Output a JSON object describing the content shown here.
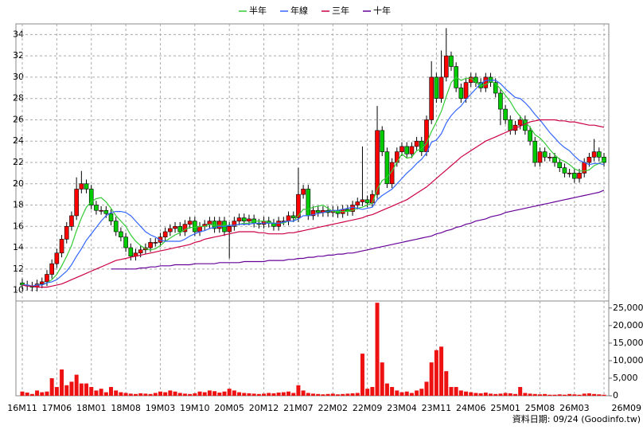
{
  "chart_data": {
    "type": "candlestick",
    "categories": [
      "16M11",
      null,
      null,
      null,
      null,
      null,
      null,
      "17M06",
      null,
      null,
      null,
      null,
      null,
      null,
      "18M01",
      null,
      null,
      null,
      null,
      null,
      null,
      "18M08",
      null,
      null,
      null,
      null,
      null,
      null,
      "19M03",
      null,
      null,
      null,
      null,
      null,
      null,
      "19M10",
      null,
      null,
      null,
      null,
      null,
      null,
      "20M05",
      null,
      null,
      null,
      null,
      null,
      null,
      "20M12",
      null,
      null,
      null,
      null,
      null,
      null,
      "21M07",
      null,
      null,
      null,
      null,
      null,
      null,
      "22M02",
      null,
      null,
      null,
      null,
      null,
      null,
      "22M09",
      null,
      null,
      null,
      null,
      null,
      null,
      "23M04",
      null,
      null,
      null,
      null,
      null,
      null,
      "23M11",
      null,
      null,
      null,
      null,
      null,
      null,
      "24M06",
      null,
      null,
      null,
      null,
      null,
      null,
      "25M01",
      null,
      null,
      null,
      null,
      null,
      null,
      "25M08",
      null,
      null,
      null,
      null,
      null,
      null,
      "26M03",
      null,
      null,
      null,
      null,
      null,
      "26M09"
    ],
    "open": [
      10.7,
      10.5,
      10.4,
      10.3,
      10.6,
      10.8,
      11.5,
      12.5,
      13.5,
      14.8,
      16.0,
      17.0,
      19.5,
      20.0,
      19.5,
      18.0,
      17.5,
      17.5,
      17.2,
      16.5,
      15.5,
      15.0,
      14.0,
      13.2,
      13.5,
      13.8,
      14.0,
      14.5,
      14.5,
      15.0,
      15.5,
      15.8,
      16.0,
      15.5,
      16.2,
      16.5,
      15.5,
      16.0,
      16.2,
      16.5,
      15.8,
      16.5,
      15.5,
      16.0,
      16.5,
      16.8,
      16.5,
      16.7,
      16.3,
      16.2,
      16.5,
      16.3,
      16.0,
      16.5,
      16.5,
      17.0,
      16.8,
      19.0,
      19.5,
      17.0,
      17.5,
      17.3,
      17.5,
      17.3,
      17.5,
      17.2,
      17.6,
      17.4,
      18.0,
      18.3,
      18.5,
      18.2,
      19.0,
      25.0,
      23.0,
      20.0,
      22.0,
      23.0,
      23.5,
      22.8,
      23.5,
      24.0,
      23.0,
      26.0,
      30.0,
      28.0,
      30.0,
      32.0,
      31.0,
      29.0,
      28.0,
      29.5,
      30.0,
      29.5,
      29.0,
      30.0,
      29.5,
      28.5,
      27.0,
      26.0,
      25.0,
      25.5,
      26.0,
      25.0,
      24.0,
      22.0,
      23.0,
      22.5,
      22.5,
      22.0,
      21.5,
      21.0,
      21.0,
      20.5,
      21.0,
      22.0,
      22.5,
      23.0,
      22.5
    ],
    "high": [
      11.1,
      10.9,
      10.8,
      11.0,
      11.2,
      11.9,
      12.9,
      13.9,
      15.2,
      16.4,
      17.4,
      20.6,
      21.2,
      20.4,
      19.9,
      18.4,
      17.9,
      17.9,
      17.6,
      16.9,
      15.9,
      15.4,
      14.4,
      13.9,
      14.2,
      14.4,
      14.9,
      14.9,
      15.4,
      15.9,
      16.2,
      16.4,
      16.4,
      16.6,
      16.9,
      16.9,
      16.4,
      16.6,
      16.9,
      16.9,
      16.9,
      16.9,
      16.4,
      16.9,
      17.2,
      17.2,
      17.1,
      17.1,
      16.7,
      16.9,
      16.9,
      16.7,
      16.9,
      16.9,
      17.4,
      17.4,
      21.5,
      19.9,
      19.9,
      17.9,
      17.9,
      17.9,
      17.9,
      17.9,
      17.9,
      18.0,
      18.0,
      18.4,
      18.7,
      23.5,
      18.9,
      19.4,
      27.3,
      25.4,
      23.4,
      22.4,
      23.4,
      23.9,
      23.9,
      23.9,
      24.4,
      24.4,
      26.4,
      31.5,
      30.4,
      32.5,
      34.6,
      32.4,
      31.4,
      29.4,
      29.9,
      30.4,
      30.4,
      29.9,
      30.4,
      30.4,
      29.9,
      28.9,
      27.4,
      26.4,
      25.9,
      26.4,
      26.4,
      25.4,
      24.4,
      23.4,
      23.4,
      22.9,
      22.9,
      22.4,
      21.9,
      21.4,
      21.4,
      21.4,
      22.4,
      22.9,
      24.2,
      23.4,
      22.9
    ],
    "low": [
      10.1,
      10.0,
      9.9,
      9.9,
      10.2,
      10.4,
      11.1,
      12.1,
      13.1,
      14.4,
      15.6,
      16.6,
      19.1,
      19.1,
      17.6,
      17.1,
      17.1,
      16.8,
      16.1,
      15.1,
      14.6,
      13.6,
      12.8,
      12.8,
      13.1,
      13.4,
      13.6,
      14.1,
      14.1,
      14.6,
      15.1,
      15.4,
      15.1,
      15.1,
      15.8,
      15.1,
      15.1,
      15.6,
      15.8,
      15.4,
      15.4,
      15.1,
      13.0,
      15.6,
      16.1,
      16.1,
      16.1,
      15.9,
      15.8,
      15.8,
      15.9,
      15.6,
      15.6,
      16.1,
      16.1,
      16.4,
      16.4,
      18.6,
      16.6,
      16.6,
      16.9,
      16.9,
      16.9,
      16.9,
      16.8,
      16.8,
      17.0,
      17.0,
      17.6,
      17.9,
      17.8,
      17.8,
      18.6,
      22.6,
      19.6,
      19.6,
      21.6,
      22.6,
      22.4,
      22.4,
      23.1,
      22.6,
      22.6,
      25.6,
      27.6,
      27.6,
      29.6,
      30.6,
      28.6,
      27.6,
      27.6,
      29.1,
      29.1,
      28.6,
      28.6,
      29.1,
      28.1,
      25.5,
      25.6,
      24.6,
      24.6,
      25.1,
      24.6,
      23.6,
      21.6,
      21.6,
      22.1,
      22.1,
      21.6,
      21.1,
      20.6,
      20.6,
      20.1,
      20.1,
      20.6,
      21.6,
      22.1,
      22.1,
      21.6
    ],
    "close": [
      10.5,
      10.4,
      10.3,
      10.6,
      10.8,
      11.5,
      12.5,
      13.5,
      14.8,
      16.0,
      17.0,
      19.5,
      20.0,
      19.5,
      18.0,
      17.5,
      17.5,
      17.2,
      16.5,
      15.5,
      15.0,
      14.0,
      13.2,
      13.5,
      13.8,
      14.0,
      14.5,
      14.5,
      15.0,
      15.5,
      15.8,
      16.0,
      15.5,
      16.2,
      16.5,
      15.5,
      16.0,
      16.2,
      16.5,
      15.8,
      16.5,
      15.5,
      16.0,
      16.5,
      16.8,
      16.5,
      16.7,
      16.3,
      16.2,
      16.5,
      16.3,
      16.0,
      16.5,
      16.5,
      17.0,
      16.8,
      19.0,
      19.5,
      17.0,
      17.5,
      17.3,
      17.5,
      17.3,
      17.5,
      17.2,
      17.6,
      17.4,
      18.0,
      18.3,
      18.5,
      18.2,
      19.0,
      25.0,
      23.0,
      20.0,
      22.0,
      23.0,
      23.5,
      22.8,
      23.5,
      24.0,
      23.0,
      26.0,
      30.0,
      28.0,
      30.0,
      32.0,
      31.0,
      29.0,
      28.0,
      29.5,
      30.0,
      29.5,
      29.0,
      30.0,
      29.5,
      28.5,
      27.0,
      26.0,
      25.0,
      25.5,
      26.0,
      25.0,
      24.0,
      22.0,
      23.0,
      22.5,
      22.5,
      22.0,
      21.5,
      21.0,
      21.0,
      20.5,
      21.0,
      22.0,
      22.5,
      23.0,
      22.5,
      22.0
    ],
    "up_color": "#ff0000",
    "down_color": "#00cc00",
    "ylim": [
      9,
      35
    ],
    "yticks": [
      10,
      12,
      14,
      16,
      18,
      20,
      22,
      24,
      26,
      28,
      30,
      32,
      34
    ],
    "grid": true,
    "legend": "top",
    "series": [
      {
        "name": "半年",
        "color": "#33cc33",
        "values": [
          10.5,
          10.5,
          10.4,
          10.5,
          10.5,
          10.7,
          11.0,
          11.5,
          12.3,
          13.2,
          14.2,
          15.6,
          16.8,
          17.8,
          18.3,
          18.6,
          18.7,
          18.3,
          17.7,
          17.0,
          16.5,
          16.0,
          15.2,
          14.6,
          14.2,
          13.9,
          13.8,
          13.9,
          14.2,
          14.6,
          14.9,
          15.2,
          15.4,
          15.7,
          15.9,
          15.9,
          16.0,
          16.0,
          16.2,
          16.1,
          16.1,
          16.1,
          16.1,
          16.1,
          16.2,
          16.3,
          16.3,
          16.5,
          16.5,
          16.5,
          16.4,
          16.3,
          16.3,
          16.3,
          16.5,
          16.5,
          17.0,
          17.6,
          17.6,
          17.8,
          17.9,
          18.0,
          17.7,
          17.4,
          17.4,
          17.4,
          17.4,
          17.5,
          17.7,
          17.8,
          18.0,
          18.2,
          19.5,
          20.3,
          20.6,
          21.2,
          22.0,
          22.8,
          22.4,
          22.5,
          23.1,
          23.3,
          23.8,
          24.9,
          25.8,
          26.8,
          28.2,
          29.5,
          30.0,
          29.7,
          29.9,
          29.9,
          29.5,
          29.2,
          29.3,
          29.6,
          29.4,
          28.9,
          28.3,
          27.7,
          26.9,
          26.3,
          25.8,
          25.3,
          24.6,
          24.3,
          23.8,
          23.2,
          22.7,
          22.3,
          22.1,
          21.8,
          21.4,
          21.2,
          21.2,
          21.3,
          21.7,
          21.9,
          22.2
        ]
      },
      {
        "name": "年線",
        "color": "#3366ff",
        "values": [
          10.5,
          10.5,
          10.4,
          10.5,
          10.5,
          10.7,
          10.8,
          11.0,
          11.4,
          11.8,
          12.4,
          13.2,
          13.9,
          14.7,
          15.3,
          15.9,
          16.5,
          17.0,
          17.3,
          17.4,
          17.4,
          17.3,
          17.0,
          16.5,
          16.0,
          15.5,
          15.2,
          15.0,
          14.7,
          14.6,
          14.6,
          14.6,
          14.6,
          14.8,
          15.1,
          15.3,
          15.5,
          15.6,
          15.8,
          15.9,
          16.0,
          16.0,
          16.1,
          16.1,
          16.2,
          16.2,
          16.2,
          16.3,
          16.3,
          16.3,
          16.3,
          16.3,
          16.3,
          16.4,
          16.5,
          16.5,
          16.7,
          17.0,
          17.0,
          17.1,
          17.2,
          17.3,
          17.4,
          17.5,
          17.5,
          17.6,
          17.7,
          17.8,
          17.7,
          17.6,
          17.7,
          17.8,
          18.5,
          18.9,
          19.2,
          19.5,
          20.0,
          20.5,
          21.0,
          21.4,
          21.9,
          22.3,
          22.9,
          23.9,
          24.1,
          24.7,
          25.7,
          26.4,
          26.9,
          27.3,
          27.9,
          28.4,
          28.9,
          29.4,
          29.7,
          29.7,
          29.7,
          29.4,
          28.9,
          28.5,
          28.1,
          28.0,
          27.6,
          27.1,
          26.5,
          26.0,
          25.4,
          24.8,
          24.3,
          23.8,
          23.4,
          23.1,
          22.6,
          22.2,
          22.0,
          21.8,
          21.9,
          21.9,
          21.8
        ]
      },
      {
        "name": "三年",
        "color": "#cc0044",
        "values": [
          10.5,
          10.4,
          10.4,
          10.3,
          10.3,
          10.3,
          10.4,
          10.5,
          10.6,
          10.8,
          11.0,
          11.2,
          11.4,
          11.6,
          11.8,
          12.0,
          12.2,
          12.4,
          12.6,
          12.8,
          12.9,
          13.0,
          13.1,
          13.2,
          13.3,
          13.4,
          13.5,
          13.6,
          13.7,
          13.8,
          13.9,
          14.0,
          14.1,
          14.2,
          14.3,
          14.5,
          14.6,
          14.8,
          14.9,
          15.0,
          15.1,
          15.2,
          15.3,
          15.4,
          15.5,
          15.5,
          15.5,
          15.5,
          15.4,
          15.4,
          15.3,
          15.3,
          15.3,
          15.3,
          15.4,
          15.4,
          15.5,
          15.6,
          15.7,
          15.8,
          15.9,
          16.0,
          16.1,
          16.2,
          16.3,
          16.4,
          16.5,
          16.6,
          16.7,
          16.8,
          17.0,
          17.1,
          17.3,
          17.5,
          17.7,
          17.9,
          18.1,
          18.3,
          18.5,
          18.8,
          19.1,
          19.4,
          19.7,
          20.1,
          20.5,
          20.9,
          21.3,
          21.7,
          22.1,
          22.5,
          22.8,
          23.1,
          23.4,
          23.7,
          24.0,
          24.2,
          24.4,
          24.6,
          24.8,
          25.0,
          25.2,
          25.4,
          25.6,
          25.8,
          25.9,
          26.0,
          26.0,
          26.0,
          26.0,
          25.9,
          25.9,
          25.8,
          25.8,
          25.7,
          25.6,
          25.5,
          25.5,
          25.4,
          25.3
        ]
      },
      {
        "name": "十年",
        "color": "#660099",
        "values": [
          null,
          null,
          null,
          null,
          null,
          null,
          null,
          null,
          null,
          null,
          null,
          null,
          null,
          null,
          null,
          null,
          null,
          null,
          12.0,
          12.0,
          12.0,
          12.0,
          12.0,
          12.0,
          12.1,
          12.1,
          12.2,
          12.2,
          12.3,
          12.3,
          12.3,
          12.4,
          12.4,
          12.4,
          12.4,
          12.5,
          12.5,
          12.5,
          12.5,
          12.5,
          12.6,
          12.6,
          12.6,
          12.6,
          12.6,
          12.7,
          12.7,
          12.7,
          12.7,
          12.7,
          12.8,
          12.8,
          12.8,
          12.8,
          12.9,
          12.9,
          13.0,
          13.0,
          13.1,
          13.1,
          13.2,
          13.2,
          13.3,
          13.3,
          13.4,
          13.4,
          13.5,
          13.5,
          13.6,
          13.7,
          13.8,
          13.9,
          14.0,
          14.1,
          14.2,
          14.3,
          14.4,
          14.5,
          14.6,
          14.7,
          14.8,
          14.9,
          15.0,
          15.1,
          15.3,
          15.4,
          15.6,
          15.7,
          15.9,
          16.0,
          16.2,
          16.3,
          16.5,
          16.6,
          16.7,
          16.9,
          17.0,
          17.1,
          17.3,
          17.4,
          17.5,
          17.6,
          17.7,
          17.8,
          17.9,
          18.0,
          18.1,
          18.2,
          18.3,
          18.4,
          18.5,
          18.6,
          18.7,
          18.8,
          18.9,
          19.0,
          19.1,
          19.2,
          19.4
        ]
      }
    ],
    "volume": {
      "color": "#ee1111",
      "values": [
        1200,
        900,
        500,
        1500,
        1000,
        1200,
        5000,
        2500,
        7500,
        3000,
        4000,
        6000,
        3500,
        3500,
        2500,
        1500,
        2000,
        1000,
        2500,
        1500,
        1000,
        800,
        600,
        500,
        700,
        600,
        500,
        800,
        1200,
        1000,
        1500,
        1200,
        800,
        600,
        500,
        700,
        1200,
        1000,
        1500,
        1300,
        900,
        1200,
        2000,
        1500,
        1000,
        800,
        700,
        600,
        500,
        600,
        800,
        700,
        900,
        1000,
        1200,
        800,
        3000,
        1500,
        800,
        600,
        500,
        400,
        500,
        600,
        400,
        500,
        600,
        700,
        800,
        12000,
        2000,
        2500,
        26500,
        9500,
        3500,
        2500,
        1500,
        1000,
        1200,
        800,
        1500,
        2000,
        4000,
        9500,
        13000,
        14000,
        7000,
        2500,
        2500,
        1500,
        1200,
        1000,
        800,
        700,
        900,
        600,
        500,
        600,
        800,
        700,
        500,
        2500,
        800,
        600,
        500,
        400,
        500,
        300,
        300,
        400,
        300,
        500,
        400,
        300,
        600,
        700,
        500,
        400,
        300
      ],
      "ylim": [
        0,
        27000
      ],
      "yticks": [
        0,
        {
          "value": 5000,
          "label": "5,000"
        },
        {
          "value": 10000,
          "label": "10,000"
        },
        {
          "value": 15000,
          "label": "15,000"
        },
        {
          "value": 20000,
          "label": "20,000"
        },
        {
          "value": 25000,
          "label": "25,000"
        }
      ]
    }
  },
  "source_note": "資料日期: 09/24 (Goodinfo.tw)"
}
